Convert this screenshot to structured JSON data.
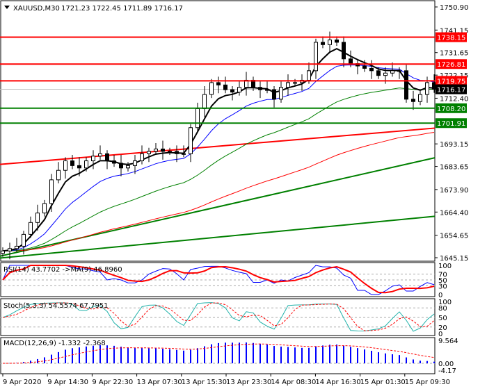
{
  "header": {
    "symbol": "XAUUSD,M30",
    "ohlc": "1721.23 1722.45 1711.89 1716.17"
  },
  "colors": {
    "bull": "#000000",
    "bear": "#000000",
    "resistance": "#ff0000",
    "support": "#008000",
    "ma_fast": "#000000",
    "ma_mid": "#0000ff",
    "ma_slow": "#008000",
    "ma_long": "#ff0000",
    "rsi": "#0000ff",
    "signal": "#ff0000",
    "stoch": "#20b2aa",
    "macd_hist": "#0000ff"
  },
  "chart_data": {
    "type": "candlestick",
    "ylim": [
      1645.15,
      1750.9
    ],
    "price_ticks": [
      "1750.90",
      "1741.15",
      "1731.65",
      "1722.15",
      "1712.40",
      "1693.15",
      "1683.65",
      "1673.90",
      "1664.40",
      "1654.65",
      "1645.15"
    ],
    "time_labels": [
      "9 Apr 2020",
      "9 Apr 14:30",
      "9 Apr 22:30",
      "13 Apr 07:30",
      "13 Apr 15:30",
      "13 Apr 23:30",
      "14 Apr 08:30",
      "14 Apr 16:30",
      "15 Apr 01:30",
      "15 Apr 09:30"
    ],
    "closes": [
      1648,
      1649,
      1650,
      1655,
      1660,
      1664,
      1668,
      1678,
      1682,
      1686,
      1684,
      1683,
      1686,
      1688,
      1689,
      1686,
      1685,
      1683,
      1684,
      1686,
      1689,
      1690,
      1691,
      1690,
      1690,
      1689,
      1689,
      1700,
      1708,
      1714,
      1719,
      1718,
      1716,
      1715,
      1717,
      1720,
      1717,
      1716,
      1716,
      1712,
      1717,
      1719,
      1719,
      1720,
      1724,
      1736,
      1735,
      1737,
      1736,
      1729,
      1727,
      1726,
      1725,
      1724,
      1722,
      1723,
      1724,
      1724,
      1712,
      1711,
      1714,
      1719,
      1716.17
    ],
    "levels": [
      {
        "price": 1738.15,
        "label": "1738.15",
        "kind": "resistance"
      },
      {
        "price": 1726.81,
        "label": "1726.81",
        "kind": "resistance"
      },
      {
        "price": 1719.75,
        "label": "1719.75",
        "kind": "resistance"
      },
      {
        "price": 1708.2,
        "label": "1708.20",
        "kind": "support"
      },
      {
        "price": 1701.91,
        "label": "1701.91",
        "kind": "support"
      }
    ],
    "bid": {
      "price": 1716.17,
      "label": "1716.17"
    },
    "trendlines": [
      {
        "kind": "resistance",
        "from": 1684.5,
        "to": 1699.8
      },
      {
        "kind": "support",
        "from": 1645.8,
        "to": 1687.3
      },
      {
        "kind": "support",
        "from": 1645.0,
        "to": 1662.6
      }
    ],
    "rsi": {
      "label": "RSI(14) 43.7702  ->MA(9) 46.8960",
      "ticks": [
        "100",
        "70",
        "50",
        "30",
        "0"
      ]
    },
    "stoch": {
      "label": "Stoch(5,3,3) 54.5574 67.7951",
      "ticks": [
        "100",
        "80",
        "50",
        "20",
        "0"
      ]
    },
    "macd": {
      "label": "MACD(12,26,9) -1.332 -2.368",
      "ticks": [
        "9.564",
        "0.00",
        "-4.17"
      ]
    }
  }
}
